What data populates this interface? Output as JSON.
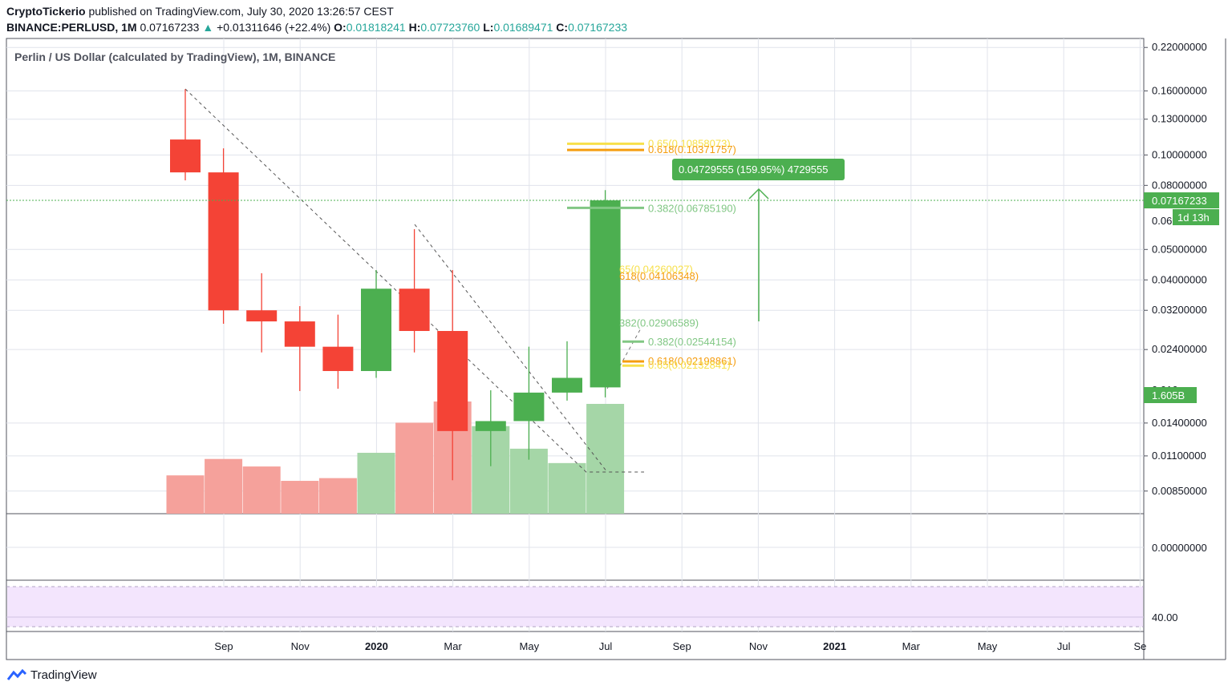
{
  "header": {
    "author": "CryptoTickerio",
    "published": "published on TradingView.com, July 30, 2020 13:26:57 CEST",
    "symbol": "BINANCE:PERLUSD, 1M",
    "last": "0.07167233",
    "arrow": "▲",
    "change": "+0.01311646 (+22.4%)",
    "o_label": "O:",
    "o": "0.01818241",
    "h_label": "H:",
    "h": "0.07723760",
    "l_label": "L:",
    "l": "0.01689471",
    "c_label": "C:",
    "c": "0.07167233"
  },
  "footer": {
    "brand": "TradingView",
    "logo_icon": "tradingview-logo-icon"
  },
  "colors": {
    "up": "#4caf50",
    "down": "#f44336",
    "vol_up": "#a5d6a7",
    "vol_down": "#f5a19b",
    "fib_gold": "#f7e04a",
    "fib_orange": "#f59d0f",
    "fib_green": "#81c784",
    "rsi_bg": "#f3e5fd"
  },
  "chart_data": {
    "type": "candlestick",
    "title": "Perlin / US Dollar (calculated by TradingView), 1M, BINANCE",
    "log_scale": true,
    "ylim": [
      0.0072,
      0.235
    ],
    "y_ticks": [
      "0.22000000",
      "0.16000000",
      "0.13000000",
      "0.10000000",
      "0.08000000",
      "0.05000000",
      "0.04000000",
      "0.03200000",
      "0.02400000",
      "0.01400000",
      "0.01100000",
      "0.00850000"
    ],
    "x_ticks": [
      "Sep",
      "Nov",
      "2020",
      "Mar",
      "May",
      "Jul",
      "Sep",
      "Nov",
      "2021",
      "Mar",
      "May",
      "Jul",
      "Se"
    ],
    "candles": [
      {
        "t": "2019-08",
        "o": 0.112,
        "h": 0.162,
        "l": 0.083,
        "c": 0.088
      },
      {
        "t": "2019-09",
        "o": 0.088,
        "h": 0.105,
        "l": 0.029,
        "c": 0.032
      },
      {
        "t": "2019-10",
        "o": 0.032,
        "h": 0.042,
        "l": 0.0235,
        "c": 0.0295
      },
      {
        "t": "2019-11",
        "o": 0.0295,
        "h": 0.033,
        "l": 0.0177,
        "c": 0.0245
      },
      {
        "t": "2019-12",
        "o": 0.0245,
        "h": 0.031,
        "l": 0.018,
        "c": 0.0205
      },
      {
        "t": "2020-01",
        "o": 0.0205,
        "h": 0.043,
        "l": 0.0195,
        "c": 0.0375
      },
      {
        "t": "2020-02",
        "o": 0.0375,
        "h": 0.058,
        "l": 0.0235,
        "c": 0.0275
      },
      {
        "t": "2020-03",
        "o": 0.0275,
        "h": 0.043,
        "l": 0.0092,
        "c": 0.0132
      },
      {
        "t": "2020-04",
        "o": 0.0132,
        "h": 0.0178,
        "l": 0.0102,
        "c": 0.0142
      },
      {
        "t": "2020-05",
        "o": 0.0142,
        "h": 0.0245,
        "l": 0.0107,
        "c": 0.0175
      },
      {
        "t": "2020-06",
        "o": 0.0175,
        "h": 0.0255,
        "l": 0.0165,
        "c": 0.0195
      },
      {
        "t": "2020-07",
        "o": 0.01818241,
        "h": 0.0772376,
        "l": 0.01689471,
        "c": 0.07167233
      }
    ],
    "volume": [
      {
        "v": 0.56,
        "dir": "down"
      },
      {
        "v": 0.8,
        "dir": "down"
      },
      {
        "v": 0.69,
        "dir": "down"
      },
      {
        "v": 0.48,
        "dir": "down"
      },
      {
        "v": 0.52,
        "dir": "down"
      },
      {
        "v": 0.89,
        "dir": "up"
      },
      {
        "v": 1.33,
        "dir": "down"
      },
      {
        "v": 1.64,
        "dir": "down"
      },
      {
        "v": 1.28,
        "dir": "up"
      },
      {
        "v": 0.95,
        "dir": "up"
      },
      {
        "v": 0.74,
        "dir": "up"
      },
      {
        "v": 1.605,
        "dir": "up"
      }
    ],
    "volume_label": "1.605B",
    "last_price_label": "0.07167233",
    "countdown_label": "1d 13h",
    "hidden_tick": "0.06",
    "hidden_tick_2": "0.016",
    "measure_label": "0.04729555 (159.95%) 4729555",
    "fib_labels": {
      "top_65": "0.65(0.10858073)",
      "top_618": "0.618(0.10371757)",
      "mid_382": "0.382(0.06785190)",
      "a_65": "65(0.04260027)",
      "a_618": "618(0.04106348)",
      "b_382": "382(0.02906589)",
      "c_382": "0.382(0.02544154)",
      "d_618": "0.618(0.02198861)",
      "d_65": "0.65(0.02132841)"
    },
    "oscillator": {
      "tick": "0.00000000"
    },
    "rsi": {
      "tick": "40.00"
    }
  }
}
